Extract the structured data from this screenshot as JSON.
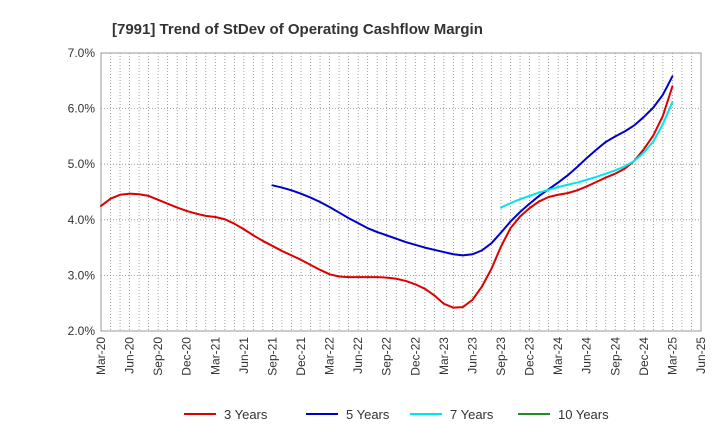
{
  "chart_data": {
    "type": "line",
    "title": "[7991]  Trend of StDev of Operating Cashflow Margin",
    "xlabel": "",
    "ylabel": "",
    "ylim": [
      2.0,
      7.0
    ],
    "y_ticks": [
      "2.0%",
      "3.0%",
      "4.0%",
      "5.0%",
      "6.0%",
      "7.0%"
    ],
    "x_tick_labels": [
      "Mar-20",
      "Jun-20",
      "Sep-20",
      "Dec-20",
      "Mar-21",
      "Jun-21",
      "Sep-21",
      "Dec-21",
      "Mar-22",
      "Jun-22",
      "Sep-22",
      "Dec-22",
      "Mar-23",
      "Jun-23",
      "Sep-23",
      "Dec-23",
      "Mar-24",
      "Jun-24",
      "Sep-24",
      "Dec-24",
      "Mar-25",
      "Jun-25"
    ],
    "grid": true,
    "legend_position": "bottom",
    "series": [
      {
        "name": "3 Years",
        "color": "#dd0000",
        "points": [
          [
            "2020-03",
            4.25
          ],
          [
            "2020-04",
            4.38
          ],
          [
            "2020-05",
            4.45
          ],
          [
            "2020-06",
            4.47
          ],
          [
            "2020-07",
            4.46
          ],
          [
            "2020-08",
            4.43
          ],
          [
            "2020-09",
            4.36
          ],
          [
            "2020-10",
            4.29
          ],
          [
            "2020-11",
            4.22
          ],
          [
            "2020-12",
            4.16
          ],
          [
            "2021-01",
            4.11
          ],
          [
            "2021-02",
            4.07
          ],
          [
            "2021-03",
            4.05
          ],
          [
            "2021-04",
            4.01
          ],
          [
            "2021-05",
            3.93
          ],
          [
            "2021-06",
            3.83
          ],
          [
            "2021-07",
            3.72
          ],
          [
            "2021-08",
            3.62
          ],
          [
            "2021-09",
            3.53
          ],
          [
            "2021-10",
            3.44
          ],
          [
            "2021-11",
            3.36
          ],
          [
            "2021-12",
            3.28
          ],
          [
            "2022-01",
            3.19
          ],
          [
            "2022-02",
            3.1
          ],
          [
            "2022-03",
            3.02
          ],
          [
            "2022-04",
            2.98
          ],
          [
            "2022-05",
            2.97
          ],
          [
            "2022-06",
            2.97
          ],
          [
            "2022-07",
            2.97
          ],
          [
            "2022-08",
            2.97
          ],
          [
            "2022-09",
            2.96
          ],
          [
            "2022-10",
            2.94
          ],
          [
            "2022-11",
            2.9
          ],
          [
            "2022-12",
            2.84
          ],
          [
            "2023-01",
            2.76
          ],
          [
            "2023-02",
            2.64
          ],
          [
            "2023-03",
            2.49
          ],
          [
            "2023-04",
            2.42
          ],
          [
            "2023-05",
            2.43
          ],
          [
            "2023-06",
            2.56
          ],
          [
            "2023-07",
            2.8
          ],
          [
            "2023-08",
            3.12
          ],
          [
            "2023-09",
            3.52
          ],
          [
            "2023-10",
            3.85
          ],
          [
            "2023-11",
            4.06
          ],
          [
            "2023-12",
            4.21
          ],
          [
            "2024-01",
            4.33
          ],
          [
            "2024-02",
            4.41
          ],
          [
            "2024-03",
            4.45
          ],
          [
            "2024-04",
            4.48
          ],
          [
            "2024-05",
            4.53
          ],
          [
            "2024-06",
            4.6
          ],
          [
            "2024-07",
            4.68
          ],
          [
            "2024-08",
            4.76
          ],
          [
            "2024-09",
            4.83
          ],
          [
            "2024-10",
            4.92
          ],
          [
            "2024-11",
            5.06
          ],
          [
            "2024-12",
            5.27
          ],
          [
            "2025-01",
            5.52
          ],
          [
            "2025-02",
            5.87
          ],
          [
            "2025-03",
            6.4
          ]
        ]
      },
      {
        "name": "5 Years",
        "color": "#0000cc",
        "points": [
          [
            "2021-09",
            4.62
          ],
          [
            "2021-10",
            4.58
          ],
          [
            "2021-11",
            4.53
          ],
          [
            "2021-12",
            4.47
          ],
          [
            "2022-01",
            4.4
          ],
          [
            "2022-02",
            4.32
          ],
          [
            "2022-03",
            4.23
          ],
          [
            "2022-04",
            4.13
          ],
          [
            "2022-05",
            4.03
          ],
          [
            "2022-06",
            3.94
          ],
          [
            "2022-07",
            3.85
          ],
          [
            "2022-08",
            3.78
          ],
          [
            "2022-09",
            3.72
          ],
          [
            "2022-10",
            3.66
          ],
          [
            "2022-11",
            3.6
          ],
          [
            "2022-12",
            3.55
          ],
          [
            "2023-01",
            3.5
          ],
          [
            "2023-02",
            3.46
          ],
          [
            "2023-03",
            3.42
          ],
          [
            "2023-04",
            3.38
          ],
          [
            "2023-05",
            3.36
          ],
          [
            "2023-06",
            3.38
          ],
          [
            "2023-07",
            3.45
          ],
          [
            "2023-08",
            3.58
          ],
          [
            "2023-09",
            3.77
          ],
          [
            "2023-10",
            3.97
          ],
          [
            "2023-11",
            4.14
          ],
          [
            "2023-12",
            4.29
          ],
          [
            "2024-01",
            4.43
          ],
          [
            "2024-02",
            4.55
          ],
          [
            "2024-03",
            4.67
          ],
          [
            "2024-04",
            4.8
          ],
          [
            "2024-05",
            4.95
          ],
          [
            "2024-06",
            5.11
          ],
          [
            "2024-07",
            5.26
          ],
          [
            "2024-08",
            5.4
          ],
          [
            "2024-09",
            5.5
          ],
          [
            "2024-10",
            5.59
          ],
          [
            "2024-11",
            5.7
          ],
          [
            "2024-12",
            5.85
          ],
          [
            "2025-01",
            6.02
          ],
          [
            "2025-02",
            6.25
          ],
          [
            "2025-03",
            6.58
          ]
        ]
      },
      {
        "name": "7 Years",
        "color": "#00e5ee",
        "points": [
          [
            "2023-09",
            4.22
          ],
          [
            "2023-10",
            4.3
          ],
          [
            "2023-11",
            4.37
          ],
          [
            "2023-12",
            4.43
          ],
          [
            "2024-01",
            4.49
          ],
          [
            "2024-02",
            4.54
          ],
          [
            "2024-03",
            4.59
          ],
          [
            "2024-04",
            4.63
          ],
          [
            "2024-05",
            4.67
          ],
          [
            "2024-06",
            4.72
          ],
          [
            "2024-07",
            4.77
          ],
          [
            "2024-08",
            4.83
          ],
          [
            "2024-09",
            4.89
          ],
          [
            "2024-10",
            4.96
          ],
          [
            "2024-11",
            5.06
          ],
          [
            "2024-12",
            5.21
          ],
          [
            "2025-01",
            5.41
          ],
          [
            "2025-02",
            5.72
          ],
          [
            "2025-03",
            6.12
          ]
        ]
      },
      {
        "name": "10 Years",
        "color": "#228b22",
        "points": []
      }
    ]
  }
}
